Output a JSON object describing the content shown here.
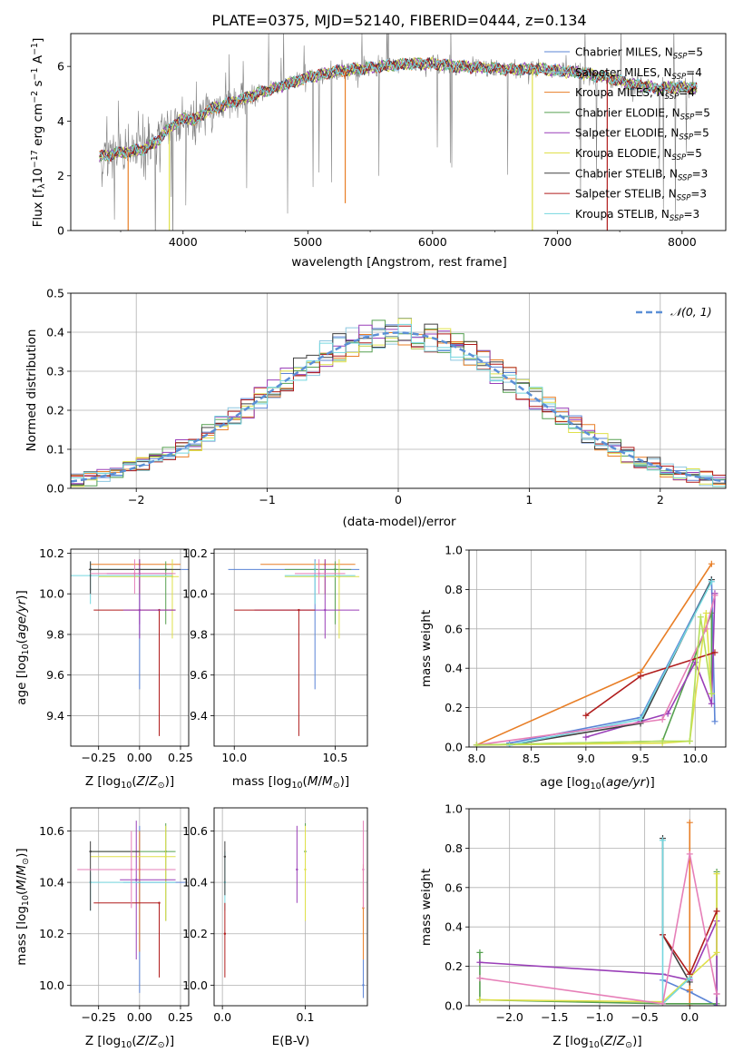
{
  "title": "PLATE=0375, MJD=52140, FIBERID=0444, z=0.134",
  "series_names": [
    "Chabrier MILES, N_{SSP}=5",
    "Salpeter MILES, N_{SSP}=4",
    "Kroupa MILES, N_{SSP}=4",
    "Chabrier ELODIE, N_{SSP}=5",
    "Salpeter ELODIE, N_{SSP}=5",
    "Kroupa ELODIE, N_{SSP}=5",
    "Chabrier STELIB, N_{SSP}=3",
    "Salpeter STELIB, N_{SSP}=3",
    "Kroupa STELIB, N_{SSP}=3"
  ],
  "colors": {
    "data": "#808080",
    "c_miles": "#5b84d6",
    "s_miles": "#8cc6e0",
    "k_miles": "#e87e26",
    "c_elodie": "#56a050",
    "s_elodie": "#9a3fb8",
    "k_elodie": "#dfe04a",
    "c_stelib": "#404040",
    "s_stelib": "#b01c1c",
    "k_stelib": "#74d7df",
    "pink": "#e67fb8",
    "lime": "#b6e05a",
    "gauss": "#5b8fd6"
  },
  "chart_data": [
    {
      "id": "spectrum",
      "type": "line",
      "title": "PLATE=0375, MJD=52140, FIBERID=0444, z=0.134",
      "xlabel": "wavelength [Angstrom, rest frame]",
      "ylabel": "Flux [f_λ 10^{-17} erg cm^{-2} s^{-1} A^{-1}]",
      "xlim": [
        3100,
        8350
      ],
      "ylim": [
        0,
        7.2
      ],
      "xticks": [
        "4000",
        "5000",
        "6000",
        "7000",
        "8000"
      ],
      "yticks": [
        "0",
        "2",
        "4",
        "6"
      ],
      "grid": false,
      "legend": "right",
      "model_continuum": {
        "x": [
          3330,
          3400,
          3500,
          3600,
          3700,
          3800,
          3900,
          4000,
          4100,
          4200,
          4400,
          4600,
          4800,
          5000,
          5200,
          5400,
          5600,
          5800,
          6000,
          6200,
          6400,
          6600,
          6800,
          7000,
          7200,
          7400,
          7600,
          7800,
          8000,
          8120
        ],
        "y": [
          2.7,
          2.75,
          2.85,
          2.9,
          3.0,
          3.3,
          3.8,
          4.1,
          4.05,
          4.4,
          4.7,
          5.0,
          5.3,
          5.6,
          5.8,
          5.9,
          6.0,
          6.1,
          6.1,
          6.0,
          5.95,
          5.9,
          5.9,
          5.85,
          5.75,
          5.6,
          5.35,
          5.2,
          5.25,
          5.2
        ]
      }
    },
    {
      "id": "residuals",
      "type": "histogram",
      "xlabel": "(data-model)/error",
      "ylabel": "Normed distribution",
      "xlim": [
        -2.5,
        2.5
      ],
      "ylim": [
        0,
        0.5
      ],
      "xticks": [
        "−2",
        "−1",
        "0",
        "1",
        "2"
      ],
      "yticks": [
        "0.0",
        "0.1",
        "0.2",
        "0.3",
        "0.4",
        "0.5"
      ],
      "grid": true,
      "legend": "top-right",
      "legend_label": "𝒩(0, 1)",
      "bin_width": 0.1
    },
    {
      "id": "age_vs_Z",
      "type": "scatter",
      "xlabel": "Z [log10(Z/Z⊙)]",
      "ylabel": "age [log10(age/yr)]",
      "xlim": [
        -0.42,
        0.3
      ],
      "ylim": [
        9.25,
        10.22
      ],
      "xticks": [
        "−0.25",
        "0.00",
        "0.25"
      ],
      "yticks": [
        "9.4",
        "9.6",
        "9.8",
        "10.0",
        "10.2"
      ],
      "grid": true,
      "points": [
        {
          "c": "c_miles",
          "x": 0.0,
          "y": 10.12,
          "x0": -0.3,
          "x1": 0.3,
          "y0": 9.53,
          "y1": 10.17
        },
        {
          "c": "k_miles",
          "x": 0.0,
          "y": 10.145,
          "x0": -0.3,
          "x1": 0.25,
          "y0": 10.0,
          "y1": 10.17
        },
        {
          "c": "c_elodie",
          "x": 0.16,
          "y": 10.12,
          "x0": -0.3,
          "x1": 0.2,
          "y0": 9.85,
          "y1": 10.16
        },
        {
          "c": "k_elodie",
          "x": 0.2,
          "y": 10.085,
          "x0": -0.25,
          "x1": 0.24,
          "y0": 9.78,
          "y1": 10.17
        },
        {
          "c": "s_elodie",
          "x": 0.0,
          "y": 10.1,
          "x0": -0.2,
          "x1": 0.2,
          "y0": 9.78,
          "y1": 10.17
        },
        {
          "c": "k_stelib",
          "x": -0.3,
          "y": 10.09,
          "x0": -0.42,
          "x1": 0.2,
          "y0": 9.95,
          "y1": 10.16
        },
        {
          "c": "s_stelib",
          "x": 0.12,
          "y": 9.92,
          "x0": -0.28,
          "x1": 0.22,
          "y0": 9.3,
          "y1": 9.92
        },
        {
          "c": "s_elodie",
          "x": 0.0,
          "y": 9.92,
          "x0": -0.1,
          "x1": 0.22,
          "y0": 9.85,
          "y1": 9.92
        },
        {
          "c": "c_stelib",
          "x": -0.3,
          "y": 10.12,
          "x0": -0.31,
          "x1": 0.25,
          "y0": 10.0,
          "y1": 10.16
        },
        {
          "c": "pink",
          "x": -0.03,
          "y": 10.1,
          "x0": -0.3,
          "x1": 0.22,
          "y0": 10.0,
          "y1": 10.17
        }
      ]
    },
    {
      "id": "age_vs_mass",
      "type": "scatter",
      "xlabel": "mass [log10(M/M⊙)]",
      "xlim": [
        9.9,
        10.66
      ],
      "ylim": [
        9.25,
        10.22
      ],
      "xticks": [
        "10.0",
        "10.5"
      ],
      "yticks": [
        "9.4",
        "9.6",
        "9.8",
        "10.0",
        "10.2"
      ],
      "grid": true,
      "points": [
        {
          "c": "c_miles",
          "x": 10.4,
          "y": 10.12,
          "x0": 9.97,
          "x1": 10.62,
          "y0": 9.53,
          "y1": 10.17
        },
        {
          "c": "k_miles",
          "x": 10.45,
          "y": 10.145,
          "x0": 10.13,
          "x1": 10.6,
          "y0": 10.0,
          "y1": 10.17
        },
        {
          "c": "c_elodie",
          "x": 10.5,
          "y": 10.12,
          "x0": 10.25,
          "x1": 10.58,
          "y0": 9.85,
          "y1": 10.16
        },
        {
          "c": "k_elodie",
          "x": 10.52,
          "y": 10.085,
          "x0": 10.25,
          "x1": 10.62,
          "y0": 9.78,
          "y1": 10.17
        },
        {
          "c": "s_elodie",
          "x": 10.45,
          "y": 9.92,
          "x0": 10.1,
          "x1": 10.62,
          "y0": 9.78,
          "y1": 10.17
        },
        {
          "c": "k_stelib",
          "x": 10.4,
          "y": 10.09,
          "x0": 10.25,
          "x1": 10.6,
          "y0": 9.95,
          "y1": 10.16
        },
        {
          "c": "s_stelib",
          "x": 10.32,
          "y": 9.92,
          "x0": 10.0,
          "x1": 10.4,
          "y0": 9.3,
          "y1": 9.92
        },
        {
          "c": "pink",
          "x": 10.42,
          "y": 10.1,
          "x0": 10.3,
          "x1": 10.55,
          "y0": 10.0,
          "y1": 10.17
        }
      ]
    },
    {
      "id": "weight_vs_age",
      "type": "line",
      "xlabel": "age [log10(age/yr)]",
      "ylabel": "mass weight",
      "xlim": [
        7.93,
        10.28
      ],
      "ylim": [
        0,
        1
      ],
      "xticks": [
        "8.0",
        "8.5",
        "9.0",
        "9.5",
        "10.0"
      ],
      "yticks": [
        "0.0",
        "0.2",
        "0.4",
        "0.6",
        "0.8",
        "1.0"
      ],
      "grid": true,
      "series": [
        {
          "c": "c_miles",
          "x": [
            8.3,
            9.5,
            10.15,
            10.18
          ],
          "y": [
            0.02,
            0.15,
            0.85,
            0.13
          ]
        },
        {
          "c": "k_miles",
          "x": [
            8.0,
            9.5,
            10.15
          ],
          "y": [
            0.01,
            0.38,
            0.93
          ]
        },
        {
          "c": "c_elodie",
          "x": [
            8.0,
            9.7,
            10.15,
            10.15
          ],
          "y": [
            0.01,
            0.03,
            0.68,
            0.27
          ]
        },
        {
          "c": "s_elodie",
          "x": [
            9.0,
            9.5,
            9.75,
            10.0,
            10.15,
            10.18
          ],
          "y": [
            0.05,
            0.13,
            0.17,
            0.43,
            0.22,
            0.78
          ]
        },
        {
          "c": "k_elodie",
          "x": [
            8.0,
            9.7,
            9.95,
            10.1,
            10.15
          ],
          "y": [
            0.01,
            0.02,
            0.03,
            0.68,
            0.27
          ]
        },
        {
          "c": "c_stelib",
          "x": [
            8.3,
            9.5,
            10.15
          ],
          "y": [
            0.01,
            0.12,
            0.85
          ]
        },
        {
          "c": "s_stelib",
          "x": [
            9.0,
            9.5,
            10.18
          ],
          "y": [
            0.16,
            0.36,
            0.48
          ]
        },
        {
          "c": "k_stelib",
          "x": [
            8.3,
            9.5,
            10.15
          ],
          "y": [
            0.01,
            0.14,
            0.84
          ]
        },
        {
          "c": "pink",
          "x": [
            8.0,
            9.7,
            10.1,
            10.18
          ],
          "y": [
            0.01,
            0.14,
            0.6,
            0.77
          ]
        },
        {
          "c": "lime",
          "x": [
            8.0,
            9.7,
            9.95,
            10.05,
            10.15
          ],
          "y": [
            0.01,
            0.03,
            0.03,
            0.66,
            0.27
          ]
        }
      ]
    },
    {
      "id": "mass_vs_Z",
      "type": "scatter",
      "xlabel": "Z [log10(Z/Z⊙)]",
      "ylabel": "mass [log10(M/M⊙)]",
      "xlim": [
        -0.42,
        0.3
      ],
      "ylim": [
        9.92,
        10.69
      ],
      "xticks": [
        "−0.25",
        "0.00",
        "0.25"
      ],
      "yticks": [
        "10.0",
        "10.2",
        "10.4",
        "10.6"
      ],
      "grid": true,
      "points": [
        {
          "c": "c_miles",
          "x": 0.0,
          "y": 10.4,
          "x0": -0.1,
          "x1": 0.28,
          "y0": 9.97,
          "y1": 10.62
        },
        {
          "c": "k_miles",
          "x": 0.0,
          "y": 10.45,
          "x0": -0.3,
          "x1": 0.1,
          "y0": 10.13,
          "y1": 10.6
        },
        {
          "c": "c_elodie",
          "x": 0.16,
          "y": 10.52,
          "x0": -0.3,
          "x1": 0.22,
          "y0": 10.25,
          "y1": 10.63
        },
        {
          "c": "k_elodie",
          "x": 0.16,
          "y": 10.5,
          "x0": -0.3,
          "x1": 0.22,
          "y0": 10.25,
          "y1": 10.62
        },
        {
          "c": "s_elodie",
          "x": -0.02,
          "y": 10.41,
          "x0": -0.12,
          "x1": 0.22,
          "y0": 10.1,
          "y1": 10.64
        },
        {
          "c": "k_stelib",
          "x": -0.3,
          "y": 10.4,
          "x0": -0.3,
          "x1": 0.22,
          "y0": 10.29,
          "y1": 10.44
        },
        {
          "c": "s_stelib",
          "x": 0.12,
          "y": 10.32,
          "x0": -0.28,
          "x1": 0.12,
          "y0": 10.03,
          "y1": 10.32
        },
        {
          "c": "c_stelib",
          "x": -0.3,
          "y": 10.52,
          "x0": -0.3,
          "x1": 0.0,
          "y0": 10.29,
          "y1": 10.56
        },
        {
          "c": "pink",
          "x": -0.05,
          "y": 10.45,
          "x0": -0.38,
          "x1": 0.22,
          "y0": 10.3,
          "y1": 10.6
        }
      ]
    },
    {
      "id": "mass_vs_ebv",
      "type": "scatter",
      "xlabel": "E(B-V)",
      "xlim": [
        -0.01,
        0.175
      ],
      "ylim": [
        9.92,
        10.69
      ],
      "xticks": [
        "0.0",
        "0.1"
      ],
      "yticks": [
        "10.0",
        "10.2",
        "10.4",
        "10.6"
      ],
      "grid": true,
      "points": [
        {
          "c": "c_miles",
          "x": 0.17,
          "y": 10.0,
          "y0": 9.95,
          "y1": 10.1
        },
        {
          "c": "k_miles",
          "x": 0.17,
          "y": 10.3,
          "y0": 10.1,
          "y1": 10.47
        },
        {
          "c": "c_elodie",
          "x": 0.1,
          "y": 10.52,
          "y0": 10.25,
          "y1": 10.63
        },
        {
          "c": "k_elodie",
          "x": 0.1,
          "y": 10.45,
          "y0": 10.25,
          "y1": 10.62
        },
        {
          "c": "s_elodie",
          "x": 0.09,
          "y": 10.45,
          "y0": 10.32,
          "y1": 10.62
        },
        {
          "c": "k_stelib",
          "x": 0.003,
          "y": 10.4,
          "y0": 10.29,
          "y1": 10.52
        },
        {
          "c": "s_stelib",
          "x": 0.003,
          "y": 10.2,
          "y0": 10.03,
          "y1": 10.32
        },
        {
          "c": "c_stelib",
          "x": 0.003,
          "y": 10.5,
          "y0": 10.35,
          "y1": 10.56
        },
        {
          "c": "pink",
          "x": 0.17,
          "y": 10.45,
          "y0": 10.3,
          "y1": 10.64
        }
      ]
    },
    {
      "id": "weight_vs_Z",
      "type": "line",
      "xlabel": "Z [log10(Z/Z⊙)]",
      "ylabel": "mass weight",
      "xlim": [
        -2.45,
        0.4
      ],
      "ylim": [
        0,
        1
      ],
      "xticks": [
        "−2.0",
        "−1.5",
        "−1.0",
        "−0.5",
        "0.0"
      ],
      "yticks": [
        "0.0",
        "0.2",
        "0.4",
        "0.6",
        "0.8",
        "1.0"
      ],
      "grid": true,
      "series": [
        {
          "c": "c_miles",
          "x": [
            -0.3,
            0.0,
            0.3
          ],
          "y": [
            0.13,
            0.07,
            0.0
          ]
        },
        {
          "c": "k_miles",
          "x": [
            0.0,
            0.0,
            0.0
          ],
          "y": [
            0.93,
            0.0,
            0.08
          ]
        },
        {
          "c": "c_elodie",
          "x": [
            -2.33,
            -2.33,
            -0.3,
            0.3,
            0.3
          ],
          "y": [
            0.27,
            0.03,
            0.01,
            0.01,
            0.68
          ]
        },
        {
          "c": "s_elodie",
          "x": [
            -2.33,
            -0.3,
            0.0,
            0.3,
            0.3,
            0.3
          ],
          "y": [
            0.22,
            0.16,
            0.13,
            0.43,
            0.06,
            0.0
          ]
        },
        {
          "c": "k_elodie",
          "x": [
            -2.33,
            -0.3,
            0.3,
            0.3
          ],
          "y": [
            0.03,
            0.02,
            0.27,
            0.67
          ]
        },
        {
          "c": "c_stelib",
          "x": [
            -0.3,
            -0.3,
            0.0
          ],
          "y": [
            0.85,
            0.36,
            0.12
          ]
        },
        {
          "c": "s_stelib",
          "x": [
            -0.3,
            0.0,
            0.3
          ],
          "y": [
            0.36,
            0.16,
            0.48
          ]
        },
        {
          "c": "k_stelib",
          "x": [
            -0.3,
            -0.3,
            0.0
          ],
          "y": [
            0.84,
            0.01,
            0.14
          ]
        },
        {
          "c": "pink",
          "x": [
            -2.33,
            -0.3,
            0.0,
            0.3
          ],
          "y": [
            0.14,
            0.01,
            0.77,
            0.06
          ]
        }
      ]
    }
  ]
}
